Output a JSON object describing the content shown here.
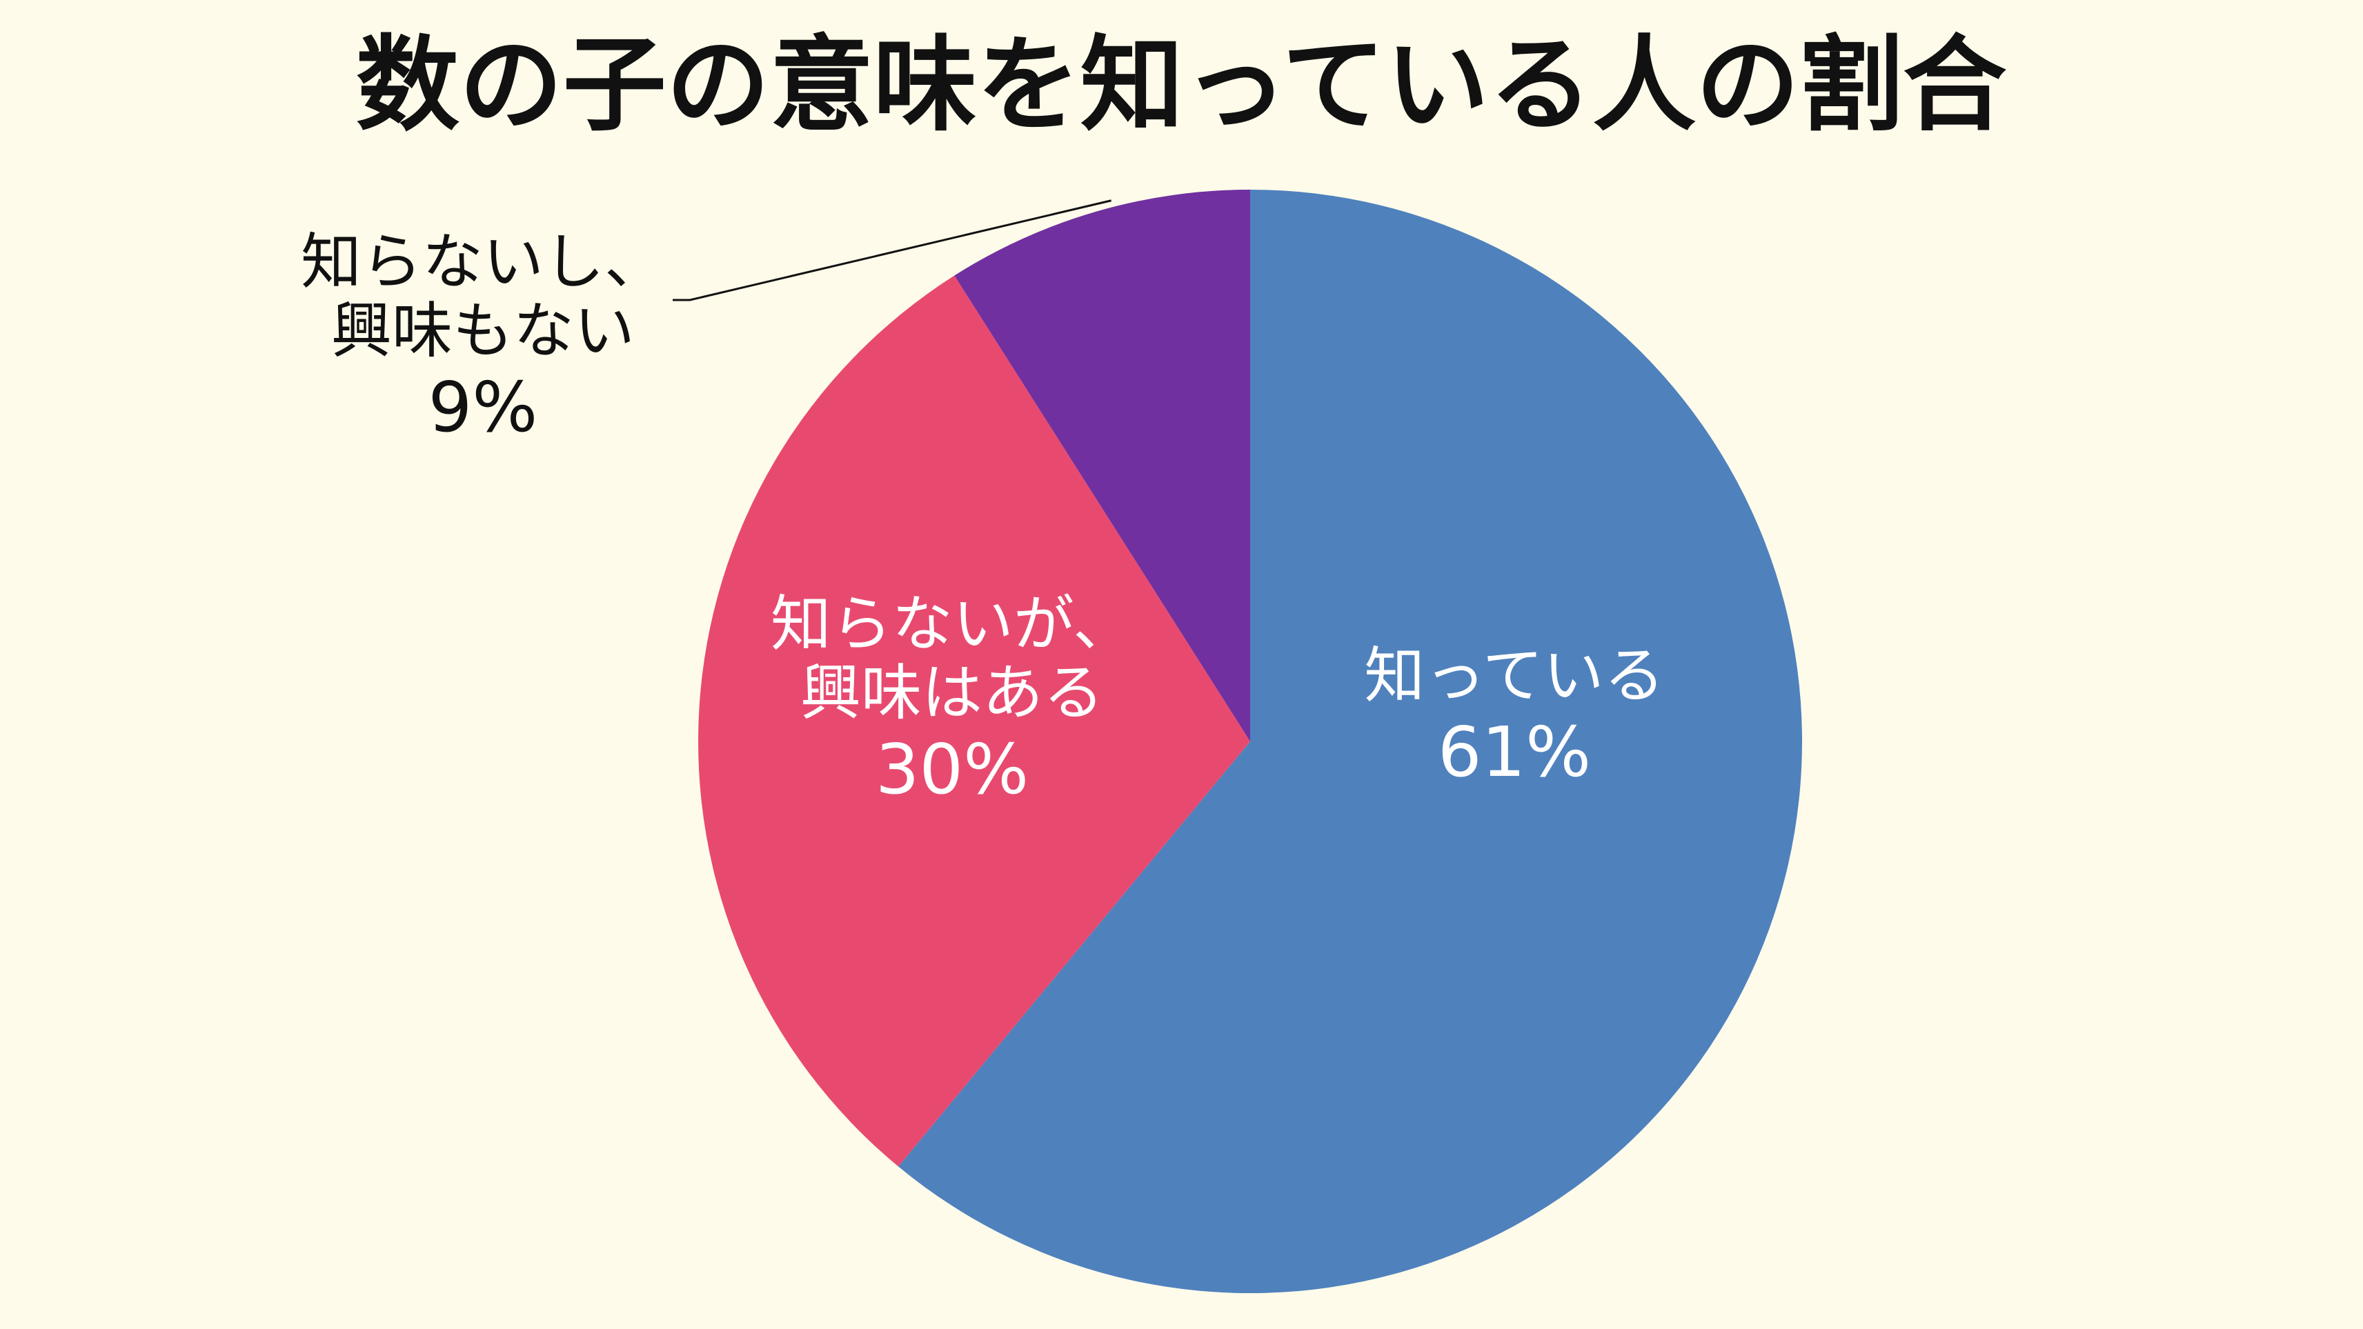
{
  "chart_data": {
    "type": "pie",
    "title": "数の子の意味を知っている人の割合",
    "slices": [
      {
        "label_lines": [
          "知っている"
        ],
        "value": 61,
        "value_label": "61%",
        "color": "#4f81bd",
        "label_color": "#ffffff"
      },
      {
        "label_lines": [
          "知らないが、",
          "興味はある"
        ],
        "value": 30,
        "value_label": "30%",
        "color": "#e84a6f",
        "label_color": "#ffffff"
      },
      {
        "label_lines": [
          "知らないし、",
          "興味もない"
        ],
        "value": 9,
        "value_label": "9%",
        "color": "#7030a0",
        "label_color": "#111111"
      }
    ],
    "background_color": "#fefbea"
  }
}
